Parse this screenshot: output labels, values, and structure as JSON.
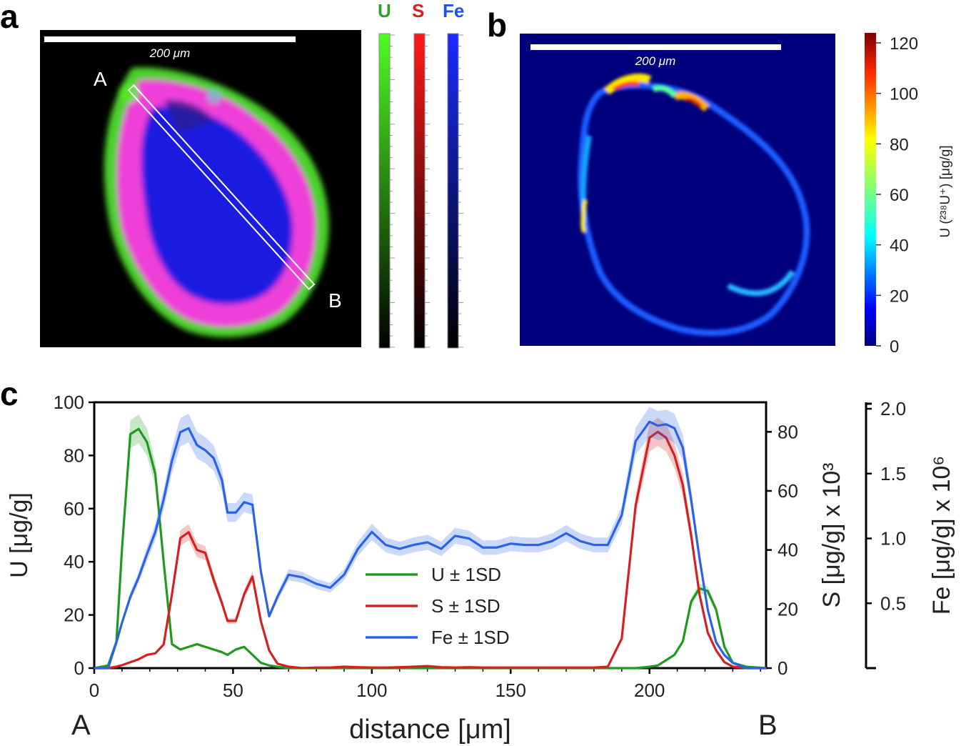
{
  "panels": {
    "a": "a",
    "b": "b",
    "c": "c"
  },
  "panel_a": {
    "scale_bar_label": "200 μm",
    "transect_start": "A",
    "transect_end": "B",
    "colorbars": [
      {
        "label": "U",
        "color": "#2ea02e"
      },
      {
        "label": "S",
        "color": "#d62020"
      },
      {
        "label": "Fe",
        "color": "#2050ee"
      }
    ]
  },
  "panel_b": {
    "scale_bar_label": "200 μm",
    "colorbar_label": "U (²³⁸U⁺) [μg/g]",
    "colorbar_ticks": [
      "120",
      "100",
      "80",
      "60",
      "40",
      "20",
      "0"
    ]
  },
  "chart_data": {
    "type": "line",
    "title": "",
    "xlabel": "distance [μm]",
    "x_start_label": "A",
    "x_end_label": "B",
    "xlim": [
      0,
      242
    ],
    "xticks": [
      0,
      50,
      100,
      150,
      200
    ],
    "y_axes": [
      {
        "label": "U [μg/g]",
        "range": [
          0,
          100
        ],
        "ticks": [
          0,
          20,
          40,
          60,
          80,
          100
        ]
      },
      {
        "label": "S [μg/g] x 10³",
        "range": [
          0,
          90
        ],
        "ticks": [
          0,
          20,
          40,
          60,
          80
        ]
      },
      {
        "label": "Fe [μg/g] x 10⁶",
        "range": [
          0,
          2.05
        ],
        "ticks": [
          "0.5",
          "1.0",
          "1.5",
          "2.0"
        ]
      }
    ],
    "legend": [
      "U ± 1SD",
      "S ± 1SD",
      "Fe ± 1SD"
    ],
    "legend_position": "center",
    "x": [
      0,
      5,
      8,
      10,
      13,
      16,
      19,
      22,
      25,
      28,
      31,
      34,
      37,
      40,
      43,
      46,
      48,
      51,
      54,
      57,
      60,
      63,
      66,
      70,
      75,
      80,
      85,
      90,
      95,
      100,
      105,
      110,
      115,
      120,
      125,
      130,
      135,
      140,
      145,
      150,
      155,
      160,
      165,
      170,
      175,
      180,
      185,
      190,
      195,
      200,
      203,
      206,
      209,
      212,
      215,
      218,
      221,
      224,
      227,
      230,
      235,
      242
    ],
    "series": [
      {
        "name": "U",
        "color": "#1f9a1f",
        "axis": "U",
        "values": [
          0,
          1,
          10,
          45,
          88,
          90,
          85,
          73,
          40,
          9,
          7,
          8,
          9,
          8,
          7,
          6,
          5,
          7,
          8,
          5,
          2,
          1,
          0.5,
          0,
          0,
          0,
          0,
          0,
          0,
          0,
          0,
          0,
          0,
          0,
          0,
          0,
          0,
          0,
          0,
          0,
          0,
          0,
          0,
          0,
          0,
          0,
          0,
          0,
          0,
          0.5,
          1,
          3,
          5,
          10,
          25,
          30,
          29,
          22,
          8,
          2,
          0.5,
          0
        ]
      },
      {
        "name": "S",
        "color": "#d42020",
        "axis": "S",
        "values": [
          0,
          0,
          0.5,
          1,
          2,
          3,
          4.5,
          5,
          8,
          25,
          44,
          46,
          40,
          39,
          30,
          22,
          16,
          16,
          25,
          31,
          16,
          6,
          1.5,
          0.5,
          0,
          0.2,
          0.2,
          0.5,
          0.3,
          0.2,
          0.2,
          0.3,
          0.5,
          0.7,
          0.3,
          0.2,
          0.3,
          0.2,
          0.2,
          0.2,
          0.2,
          0.2,
          0.2,
          0.2,
          0.2,
          0.2,
          0.5,
          10,
          55,
          78,
          80,
          78,
          72,
          62,
          45,
          25,
          12,
          6,
          2,
          0.5,
          0,
          0
        ]
      },
      {
        "name": "Fe",
        "color": "#2a62e8",
        "axis": "Fe",
        "values": [
          0,
          0,
          0.2,
          0.35,
          0.55,
          0.7,
          0.88,
          1.05,
          1.3,
          1.6,
          1.82,
          1.85,
          1.72,
          1.68,
          1.62,
          1.45,
          1.2,
          1.2,
          1.28,
          1.26,
          0.75,
          0.4,
          0.55,
          0.72,
          0.7,
          0.65,
          0.62,
          0.72,
          0.92,
          1.05,
          0.95,
          0.92,
          0.95,
          0.97,
          0.92,
          1.02,
          1.0,
          0.93,
          0.93,
          0.96,
          0.95,
          0.95,
          0.98,
          1.04,
          0.98,
          0.95,
          0.95,
          1.18,
          1.75,
          1.9,
          1.87,
          1.88,
          1.85,
          1.7,
          1.3,
          0.85,
          0.45,
          0.2,
          0.1,
          0.04,
          0,
          0
        ]
      }
    ]
  }
}
